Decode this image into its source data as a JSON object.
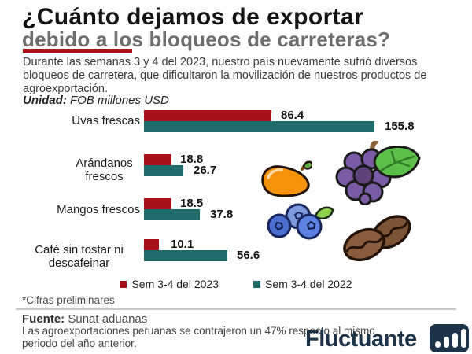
{
  "colors": {
    "accent_red": "#a8101a",
    "teal": "#1e6b69",
    "title_gray": "#6e6e6e",
    "brand_navy": "#1d3349"
  },
  "header": {
    "title_line1": "¿Cuánto dejamos de exportar",
    "title_line2": "debido a los bloqueos de carreteras?",
    "intro": "Durante las semanas 3 y 4 del 2023, nuestro país nuevamente sufrió diversos bloqueos de carretera, que dificultaron la movilización de nuestros productos de agroexportación.",
    "unit_label": "Unidad:",
    "unit_value": "FOB millones USD"
  },
  "chart_data": {
    "type": "bar",
    "orientation": "horizontal",
    "unit": "FOB millones USD",
    "categories": [
      "Uvas frescas",
      "Arándanos frescos",
      "Mangos frescos",
      "Café sin tostar ni descafeinar"
    ],
    "series": [
      {
        "name": "Sem 3-4 del 2023",
        "color": "#a8101a",
        "values": [
          86.4,
          18.8,
          18.5,
          10.1
        ]
      },
      {
        "name": "Sem 3-4 del 2022",
        "color": "#1e6b69",
        "values": [
          155.8,
          26.7,
          37.8,
          56.6
        ]
      }
    ],
    "xlim": [
      0,
      160
    ],
    "legend_position": "bottom",
    "value_labels": true,
    "icons": [
      "mango-icon",
      "grapes-icon",
      "blueberries-icon",
      "coffee-beans-icon"
    ]
  },
  "footer": {
    "note": "*Cifras preliminares",
    "source_label": "Fuente:",
    "source_value": "Sunat aduanas",
    "comment": "Las agroexportaciones peruanas se contrajeron un 47% respecto al mismo periodo del año anterior.",
    "brand": "Fluctuante"
  }
}
